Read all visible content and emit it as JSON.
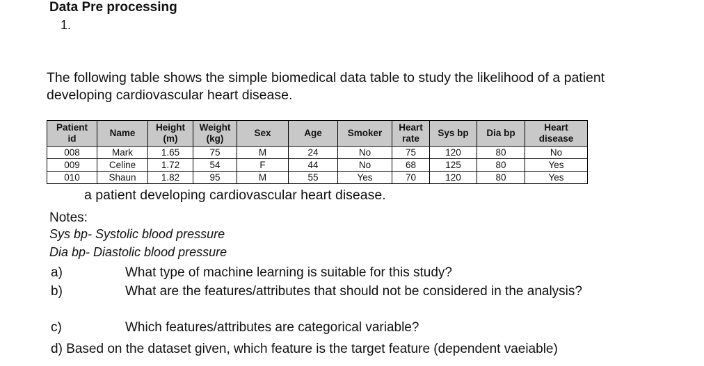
{
  "title": "Data Pre processing",
  "question_number": "1.",
  "intro": "The following table shows the simple biomedical data table to study the likelihood of a patient developing cardiovascular heart disease.",
  "table": {
    "headers": [
      [
        "Patient",
        "id"
      ],
      [
        "Name"
      ],
      [
        "Height",
        "(m)"
      ],
      [
        "Weight",
        "(kg)"
      ],
      [
        "Sex"
      ],
      [
        "Age"
      ],
      [
        "Smoker"
      ],
      [
        "Heart",
        "rate"
      ],
      [
        "Sys bp"
      ],
      [
        "Dia bp"
      ],
      [
        "Heart",
        "disease"
      ]
    ],
    "rows": [
      [
        "008",
        "Mark",
        "1.65",
        "75",
        "M",
        "24",
        "No",
        "75",
        "120",
        "80",
        "No"
      ],
      [
        "009",
        "Celine",
        "1.72",
        "54",
        "F",
        "44",
        "No",
        "68",
        "125",
        "80",
        "Yes"
      ],
      [
        "010",
        "Shaun",
        "1.82",
        "95",
        "M",
        "55",
        "Yes",
        "70",
        "120",
        "80",
        "Yes"
      ]
    ]
  },
  "caption": "a patient developing cardiovascular heart disease.",
  "notes": {
    "heading": "Notes:",
    "items": [
      "Sys bp- Systolic blood pressure",
      "Dia bp- Diastolic blood pressure"
    ]
  },
  "questions": {
    "a_label": "a)",
    "a_text": "What type of machine learning is suitable for this study?",
    "b_label": "b)",
    "b_text": "What are the features/attributes that should not be considered in the analysis?",
    "c_label": "c)",
    "c_text": "Which features/attributes are categorical variable?",
    "d_text": "d) Based on the dataset given, which feature is the target feature (dependent vaeiable)"
  }
}
